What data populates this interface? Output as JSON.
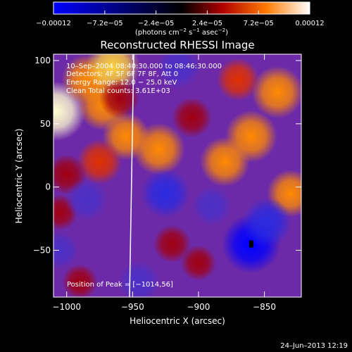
{
  "chart_data": {
    "type": "heatmap",
    "title": "Reconstructed RHESSI Image",
    "xlabel": "Heliocentric X (arcsec)",
    "ylabel": "Heliocentric Y (arcsec)",
    "xlim": [
      -1010,
      -822
    ],
    "ylim": [
      -87,
      105
    ],
    "xticks": [
      -1000,
      -950,
      -900,
      -850
    ],
    "xtick_labels": [
      "−1000",
      "−950",
      "−900",
      "−850"
    ],
    "yticks": [
      100,
      50,
      0,
      -50
    ],
    "ytick_labels": [
      "100",
      "50",
      "0",
      "−50"
    ],
    "colorbar": {
      "range": [
        -0.00012,
        0.00012
      ],
      "ticks": [
        -0.00012,
        -7.2e-05,
        -2.4e-05,
        2.4e-05,
        7.2e-05,
        0.00012
      ],
      "tick_labels": [
        "−0.00012",
        "−7.2e−05",
        "−2.4e−05",
        "2.4e−05",
        "7.2e−05",
        "0.00012"
      ],
      "units_main": "(photons cm",
      "units_sup1": "−2",
      "units_mid1": " s",
      "units_sup2": "−1",
      "units_mid2": " asec",
      "units_sup3": "−2",
      "units_end": ")"
    },
    "annotations": [
      "10–Sep–2004 08:40:30.000 to 08:46:30.000",
      "Detectors: 4F 5F 6F 7F 8F, Att 0",
      "Energy Range: 12.0 − 25.0 keV",
      "Clean     Total counts: 3.61E+03"
    ],
    "peak_label": "Position of Peak = [−1014,56]",
    "sources": [
      {
        "x": -1008,
        "y": 60,
        "value": 0.00012
      },
      {
        "x": -985,
        "y": 85,
        "value": 8e-05
      },
      {
        "x": -965,
        "y": 95,
        "value": 0.0001
      },
      {
        "x": -972,
        "y": 65,
        "value": 9e-05
      },
      {
        "x": -955,
        "y": 40,
        "value": 7e-05
      },
      {
        "x": -975,
        "y": 20,
        "value": 6e-05
      },
      {
        "x": -1000,
        "y": 10,
        "value": 4e-05
      },
      {
        "x": -1005,
        "y": -20,
        "value": 2e-05
      },
      {
        "x": -930,
        "y": 30,
        "value": 9e-05
      },
      {
        "x": -960,
        "y": 70,
        "value": 4e-05
      },
      {
        "x": -905,
        "y": 55,
        "value": 4e-05
      },
      {
        "x": -880,
        "y": 20,
        "value": 8e-05
      },
      {
        "x": -860,
        "y": 40,
        "value": 9e-05
      },
      {
        "x": -840,
        "y": 75,
        "value": 9e-05
      },
      {
        "x": -870,
        "y": 85,
        "value": 5e-05
      },
      {
        "x": -830,
        "y": -5,
        "value": 7e-05
      },
      {
        "x": -920,
        "y": -45,
        "value": 3e-05
      },
      {
        "x": -900,
        "y": -60,
        "value": 2e-05
      },
      {
        "x": -990,
        "y": -75,
        "value": 2e-05
      },
      {
        "x": -860,
        "y": -45,
        "value": -0.00012
      },
      {
        "x": -848,
        "y": -28,
        "value": -8e-05
      },
      {
        "x": -925,
        "y": -5,
        "value": -8e-05
      },
      {
        "x": -985,
        "y": -10,
        "value": -5e-05
      },
      {
        "x": -945,
        "y": -75,
        "value": -5e-05
      },
      {
        "x": -890,
        "y": -15,
        "value": -4e-05
      },
      {
        "x": -915,
        "y": 95,
        "value": -6e-05
      },
      {
        "x": -1005,
        "y": -50,
        "value": -3e-05
      }
    ]
  },
  "footer": {
    "date": "24–Jun–2013 12:19"
  }
}
